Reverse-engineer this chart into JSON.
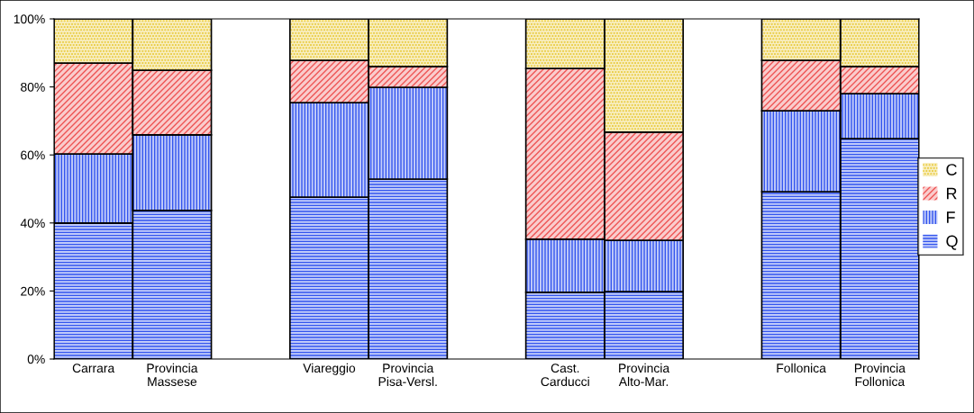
{
  "chart_data": {
    "type": "bar",
    "stacked": true,
    "categories": [
      "Carrara",
      "Provincia\nMassese",
      null,
      "Viareggio",
      "Provincia\nPisa-Versl.",
      null,
      "Cast.\nCarducci",
      "Provincia\nAlto-Mar.",
      null,
      "Follonica",
      "Provincia\nFollonica"
    ],
    "series": [
      {
        "name": "Q",
        "color": "#3355ee",
        "values": [
          40,
          43.7,
          null,
          47.6,
          52.9,
          null,
          19.6,
          19.8,
          null,
          49.2,
          64.8
        ]
      },
      {
        "name": "F",
        "color": "#3355ee",
        "values": [
          20.3,
          22.2,
          null,
          27.8,
          27,
          null,
          15.6,
          15.1,
          null,
          23.8,
          13.2
        ]
      },
      {
        "name": "R",
        "color": "#ee5555",
        "values": [
          26.7,
          19,
          null,
          12.4,
          6.1,
          null,
          50.2,
          31.8,
          null,
          14.8,
          8
        ]
      },
      {
        "name": "C",
        "color": "#e8c830",
        "values": [
          13,
          15.1,
          null,
          12.2,
          14,
          null,
          14.6,
          33.3,
          null,
          12.2,
          14
        ]
      }
    ],
    "ylim": [
      0,
      100
    ],
    "yticks": [
      {
        "value": 0,
        "label": "0%"
      },
      {
        "value": 20,
        "label": "20%"
      },
      {
        "value": 40,
        "label": "40%"
      },
      {
        "value": 60,
        "label": "60%"
      },
      {
        "value": 80,
        "label": "80%"
      },
      {
        "value": 100,
        "label": "100%"
      }
    ],
    "grid": false,
    "legend": "right"
  }
}
